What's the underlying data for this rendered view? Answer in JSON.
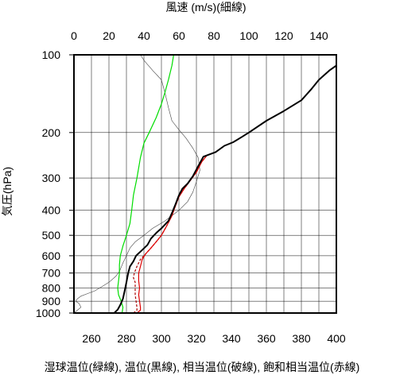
{
  "chart_data": {
    "type": "line",
    "title": "",
    "xlabel": "湿球温位(緑線), 温位(黒線), 相当温位(破線), 飽和相当温位(赤線)",
    "x2label": "風速 (m/s)(細線)",
    "ylabel": "気圧(hPa)",
    "xlim": [
      250,
      400
    ],
    "x2lim": [
      0,
      150
    ],
    "ylim": [
      1000,
      100
    ],
    "yscale": "log",
    "grid": true,
    "x_ticks": [
      "260",
      "280",
      "300",
      "320",
      "340",
      "360",
      "380",
      "400"
    ],
    "x2_ticks": [
      "0",
      "20",
      "40",
      "60",
      "80",
      "100",
      "120",
      "140"
    ],
    "y_ticks": [
      "100",
      "200",
      "300",
      "400",
      "500",
      "600",
      "700",
      "800",
      "900",
      "1000"
    ],
    "series": [
      {
        "name": "湿球温位",
        "color": "#00dd00",
        "axis": "bottom",
        "points": [
          [
            277.5,
            1000
          ],
          [
            278,
            950
          ],
          [
            277,
            900
          ],
          [
            275.5,
            850
          ],
          [
            275,
            800
          ],
          [
            275.5,
            750
          ],
          [
            276,
            700
          ],
          [
            276,
            650
          ],
          [
            276.5,
            600
          ],
          [
            278,
            550
          ],
          [
            280,
            500
          ],
          [
            282,
            450
          ],
          [
            283,
            400
          ],
          [
            284,
            350
          ],
          [
            286,
            300
          ],
          [
            288,
            250
          ],
          [
            290,
            220
          ],
          [
            293,
            200
          ],
          [
            297,
            175
          ],
          [
            300,
            155
          ],
          [
            302,
            140
          ],
          [
            304,
            125
          ],
          [
            306,
            110
          ],
          [
            307,
            100
          ]
        ]
      },
      {
        "name": "温位",
        "color": "#000000",
        "axis": "bottom",
        "points": [
          [
            273,
            1000
          ],
          [
            275,
            970
          ],
          [
            276.5,
            930
          ],
          [
            278,
            880
          ],
          [
            279,
            820
          ],
          [
            280,
            760
          ],
          [
            281,
            700
          ],
          [
            282,
            660
          ],
          [
            284,
            630
          ],
          [
            285.5,
            600
          ],
          [
            289,
            570
          ],
          [
            292,
            545
          ],
          [
            294,
            515
          ],
          [
            297,
            490
          ],
          [
            300,
            470
          ],
          [
            304,
            440
          ],
          [
            306,
            410
          ],
          [
            308,
            380
          ],
          [
            310,
            350
          ],
          [
            312,
            330
          ],
          [
            315,
            315
          ],
          [
            318,
            295
          ],
          [
            321,
            270
          ],
          [
            324,
            248
          ],
          [
            331,
            238
          ],
          [
            336,
            225
          ],
          [
            341,
            218
          ],
          [
            345,
            210
          ],
          [
            350,
            200
          ],
          [
            360,
            180
          ],
          [
            370,
            165
          ],
          [
            380,
            150
          ],
          [
            386,
            135
          ],
          [
            390,
            125
          ],
          [
            396,
            115
          ],
          [
            400,
            110
          ]
        ]
      },
      {
        "name": "相当温位",
        "color": "#aa0000",
        "axis": "bottom",
        "dashed": true,
        "points": [
          [
            284,
            1000
          ],
          [
            286,
            975
          ],
          [
            286,
            950
          ],
          [
            285.5,
            900
          ],
          [
            285,
            850
          ],
          [
            285,
            800
          ],
          [
            285,
            760
          ],
          [
            284,
            730
          ],
          [
            284.5,
            700
          ],
          [
            286,
            660
          ],
          [
            288,
            620
          ],
          [
            291,
            590
          ],
          [
            294,
            560
          ],
          [
            297,
            530
          ],
          [
            300,
            500
          ],
          [
            303,
            460
          ],
          [
            306,
            420
          ],
          [
            308,
            385
          ],
          [
            310,
            355
          ],
          [
            313,
            330
          ],
          [
            316,
            310
          ],
          [
            320,
            285
          ],
          [
            323,
            260
          ],
          [
            326,
            245
          ],
          [
            331,
            238
          ],
          [
            336,
            225
          ],
          [
            341,
            218
          ],
          [
            345,
            210
          ],
          [
            350,
            200
          ],
          [
            360,
            180
          ],
          [
            370,
            165
          ],
          [
            380,
            150
          ],
          [
            386,
            135
          ],
          [
            390,
            125
          ],
          [
            396,
            115
          ],
          [
            400,
            110
          ]
        ]
      },
      {
        "name": "飽和相当温位",
        "color": "#dd0000",
        "axis": "bottom",
        "points": [
          [
            286,
            1000
          ],
          [
            288,
            975
          ],
          [
            288,
            950
          ],
          [
            287.5,
            900
          ],
          [
            287,
            850
          ],
          [
            287.5,
            800
          ],
          [
            287,
            750
          ],
          [
            287,
            700
          ],
          [
            288,
            660
          ],
          [
            289,
            620
          ],
          [
            291,
            590
          ],
          [
            294,
            560
          ],
          [
            297,
            530
          ],
          [
            300,
            500
          ],
          [
            303,
            460
          ],
          [
            306,
            420
          ],
          [
            308,
            385
          ],
          [
            310,
            355
          ],
          [
            313,
            330
          ],
          [
            316,
            310
          ],
          [
            320,
            285
          ],
          [
            323,
            260
          ],
          [
            326,
            245
          ],
          [
            331,
            238
          ],
          [
            336,
            225
          ],
          [
            341,
            218
          ],
          [
            345,
            210
          ],
          [
            350,
            200
          ],
          [
            360,
            180
          ],
          [
            370,
            165
          ],
          [
            380,
            150
          ],
          [
            386,
            135
          ],
          [
            390,
            125
          ],
          [
            396,
            115
          ],
          [
            400,
            110
          ]
        ]
      },
      {
        "name": "風速",
        "color": "#444444",
        "axis": "top",
        "thin": true,
        "points": [
          [
            0,
            1000
          ],
          [
            2,
            975
          ],
          [
            4,
            950
          ],
          [
            3,
            920
          ],
          [
            1,
            900
          ],
          [
            2,
            880
          ],
          [
            4,
            860
          ],
          [
            8,
            840
          ],
          [
            12,
            820
          ],
          [
            16,
            790
          ],
          [
            20,
            760
          ],
          [
            24,
            720
          ],
          [
            26,
            690
          ],
          [
            28,
            640
          ],
          [
            30,
            600
          ],
          [
            32,
            560
          ],
          [
            35,
            530
          ],
          [
            40,
            500
          ],
          [
            45,
            470
          ],
          [
            52,
            440
          ],
          [
            60,
            400
          ],
          [
            65,
            370
          ],
          [
            68,
            340
          ],
          [
            70,
            310
          ],
          [
            72,
            280
          ],
          [
            71,
            250
          ],
          [
            68,
            230
          ],
          [
            64,
            210
          ],
          [
            60,
            195
          ],
          [
            56,
            180
          ],
          [
            54,
            160
          ],
          [
            52,
            140
          ],
          [
            50,
            125
          ],
          [
            45,
            115
          ],
          [
            40,
            105
          ],
          [
            38,
            100
          ]
        ]
      }
    ]
  }
}
